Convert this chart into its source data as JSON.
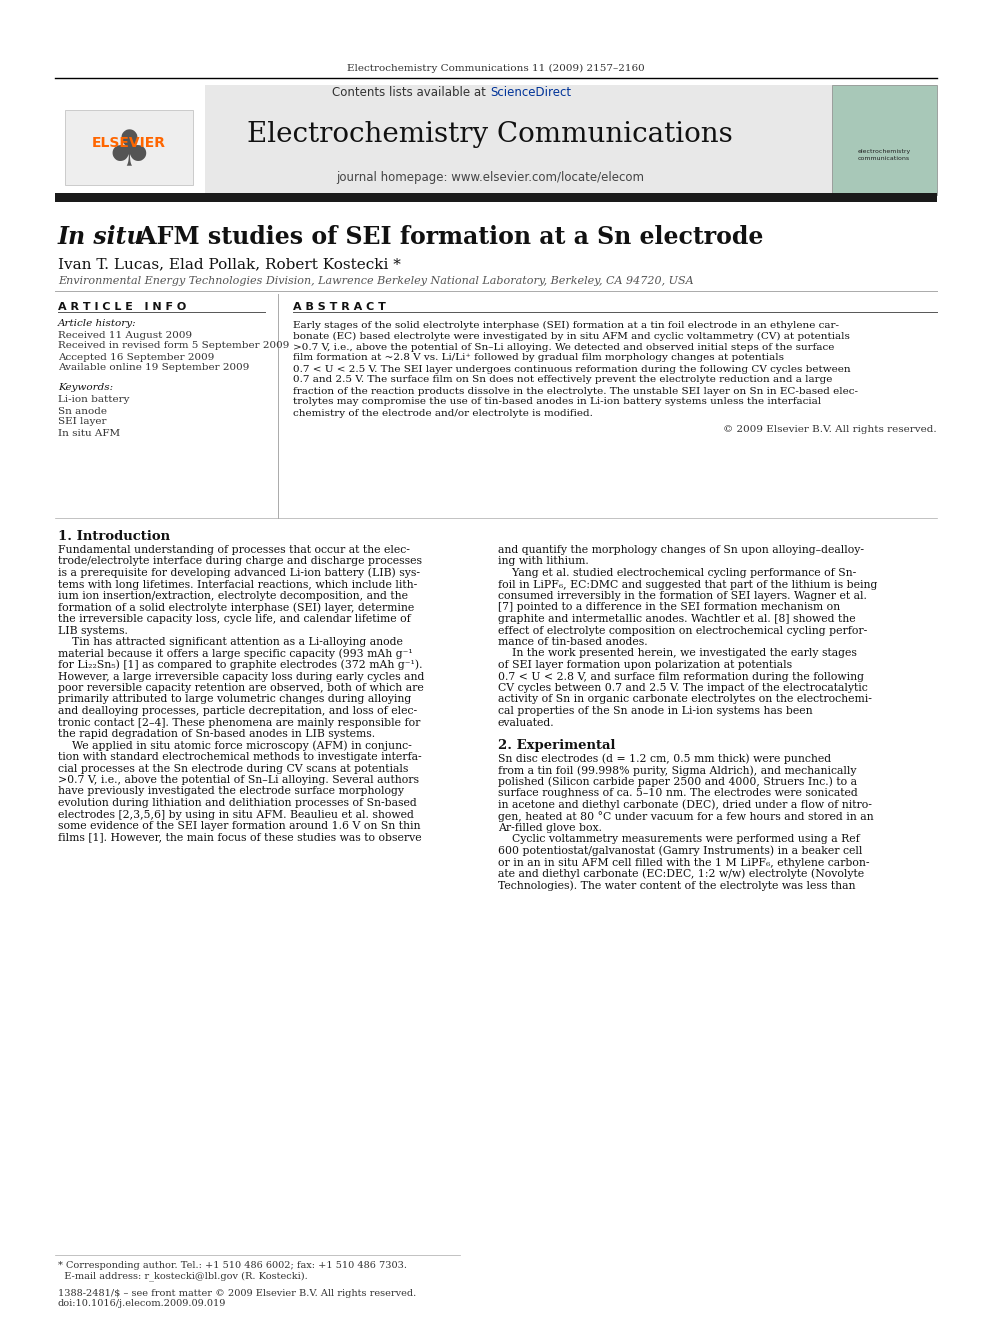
{
  "page_title_small": "Electrochemistry Communications 11 (2009) 2157–2160",
  "journal_name": "Electrochemistry Communications",
  "journal_homepage": "journal homepage: www.elsevier.com/locate/elecom",
  "contents_line": "Contents lists available at ScienceDirect",
  "elsevier_color": "#FF6600",
  "sciencedirect_color": "#003399",
  "paper_title_italic": "In situ",
  "paper_title_rest": " AFM studies of SEI formation at a Sn electrode",
  "authors": "Ivan T. Lucas, Elad Pollak, Robert Kostecki *",
  "affiliation": "Environmental Energy Technologies Division, Lawrence Berkeley National Laboratory, Berkeley, CA 94720, USA",
  "article_info_header": "A R T I C L E   I N F O",
  "abstract_header": "A B S T R A C T",
  "article_history_label": "Article history:",
  "received": "Received 11 August 2009",
  "revised": "Received in revised form 5 September 2009",
  "accepted": "Accepted 16 September 2009",
  "available": "Available online 19 September 2009",
  "keywords_label": "Keywords:",
  "keyword1": "Li-ion battery",
  "keyword2": "Sn anode",
  "keyword3": "SEI layer",
  "keyword4": "In situ AFM",
  "copyright": "© 2009 Elsevier B.V. All rights reserved.",
  "intro_header": "1. Introduction",
  "exp_header": "2. Experimental",
  "bg_color": "#ffffff",
  "header_bg": "#e8e8e8",
  "black_bar": "#1a1a1a",
  "abstract_lines": [
    "Early stages of the solid electrolyte interphase (SEI) formation at a tin foil electrode in an ethylene car-",
    "bonate (EC) based electrolyte were investigated by in situ AFM and cyclic voltammetry (CV) at potentials",
    ">0.7 V, i.e., above the potential of Sn–Li alloying. We detected and observed initial steps of the surface",
    "film formation at ~2.8 V vs. Li/Li⁺ followed by gradual film morphology changes at potentials",
    "0.7 < U < 2.5 V. The SEI layer undergoes continuous reformation during the following CV cycles between",
    "0.7 and 2.5 V. The surface film on Sn does not effectively prevent the electrolyte reduction and a large",
    "fraction of the reaction products dissolve in the electrolyte. The unstable SEI layer on Sn in EC-based elec-",
    "trolytes may compromise the use of tin-based anodes in Li-ion battery systems unless the interfacial",
    "chemistry of the electrode and/or electrolyte is modified."
  ],
  "intro_col1_lines": [
    "Fundamental understanding of processes that occur at the elec-",
    "trode/electrolyte interface during charge and discharge processes",
    "is a prerequisite for developing advanced Li-ion battery (LIB) sys-",
    "tems with long lifetimes. Interfacial reactions, which include lith-",
    "ium ion insertion/extraction, electrolyte decomposition, and the",
    "formation of a solid electrolyte interphase (SEI) layer, determine",
    "the irreversible capacity loss, cycle life, and calendar lifetime of",
    "LIB systems.",
    "    Tin has attracted significant attention as a Li-alloying anode",
    "material because it offers a large specific capacity (993 mAh g⁻¹",
    "for Li₂₂Sn₅) [1] as compared to graphite electrodes (372 mAh g⁻¹).",
    "However, a large irreversible capacity loss during early cycles and",
    "poor reversible capacity retention are observed, both of which are",
    "primarily attributed to large volumetric changes during alloying",
    "and dealloying processes, particle decrepitation, and loss of elec-",
    "tronic contact [2–4]. These phenomena are mainly responsible for",
    "the rapid degradation of Sn-based anodes in LIB systems.",
    "    We applied in situ atomic force microscopy (AFM) in conjunc-",
    "tion with standard electrochemical methods to investigate interfa-",
    "cial processes at the Sn electrode during CV scans at potentials",
    ">0.7 V, i.e., above the potential of Sn–Li alloying. Several authors",
    "have previously investigated the electrode surface morphology",
    "evolution during lithiation and delithiation processes of Sn-based",
    "electrodes [2,3,5,6] by using in situ AFM. Beaulieu et al. showed",
    "some evidence of the SEI layer formation around 1.6 V on Sn thin",
    "films [1]. However, the main focus of these studies was to observe"
  ],
  "intro_col2_lines": [
    "and quantify the morphology changes of Sn upon alloying–dealloy-",
    "ing with lithium.",
    "    Yang et al. studied electrochemical cycling performance of Sn-",
    "foil in LiPF₆, EC:DMC and suggested that part of the lithium is being",
    "consumed irreversibly in the formation of SEI layers. Wagner et al.",
    "[7] pointed to a difference in the SEI formation mechanism on",
    "graphite and intermetallic anodes. Wachtler et al. [8] showed the",
    "effect of electrolyte composition on electrochemical cycling perfor-",
    "mance of tin-based anodes.",
    "    In the work presented herein, we investigated the early stages",
    "of SEI layer formation upon polarization at potentials",
    "0.7 < U < 2.8 V, and surface film reformation during the following",
    "CV cycles between 0.7 and 2.5 V. The impact of the electrocatalytic",
    "activity of Sn in organic carbonate electrolytes on the electrochemi-",
    "cal properties of the Sn anode in Li-ion systems has been",
    "evaluated."
  ],
  "exp_col2_lines": [
    "Sn disc electrodes (d = 1.2 cm, 0.5 mm thick) were punched",
    "from a tin foil (99.998% purity, Sigma Aldrich), and mechanically",
    "polished (Silicon carbide paper 2500 and 4000, Struers Inc.) to a",
    "surface roughness of ca. 5–10 nm. The electrodes were sonicated",
    "in acetone and diethyl carbonate (DEC), dried under a flow of nitro-",
    "gen, heated at 80 °C under vacuum for a few hours and stored in an",
    "Ar-filled glove box.",
    "    Cyclic voltammetry measurements were performed using a Ref",
    "600 potentiostat/galvanostat (Gamry Instruments) in a beaker cell",
    "or in an in situ AFM cell filled with the 1 M LiPF₆, ethylene carbon-",
    "ate and diethyl carbonate (EC:DEC, 1:2 w/w) electrolyte (Novolyte",
    "Technologies). The water content of the electrolyte was less than"
  ],
  "footnote_lines": [
    "* Corresponding author. Tel.: +1 510 486 6002; fax: +1 510 486 7303.",
    "  E-mail address: r_kostecki@lbl.gov (R. Kostecki)."
  ],
  "issn_lines": [
    "1388-2481/$ – see front matter © 2009 Elsevier B.V. All rights reserved.",
    "doi:10.1016/j.elecom.2009.09.019"
  ]
}
